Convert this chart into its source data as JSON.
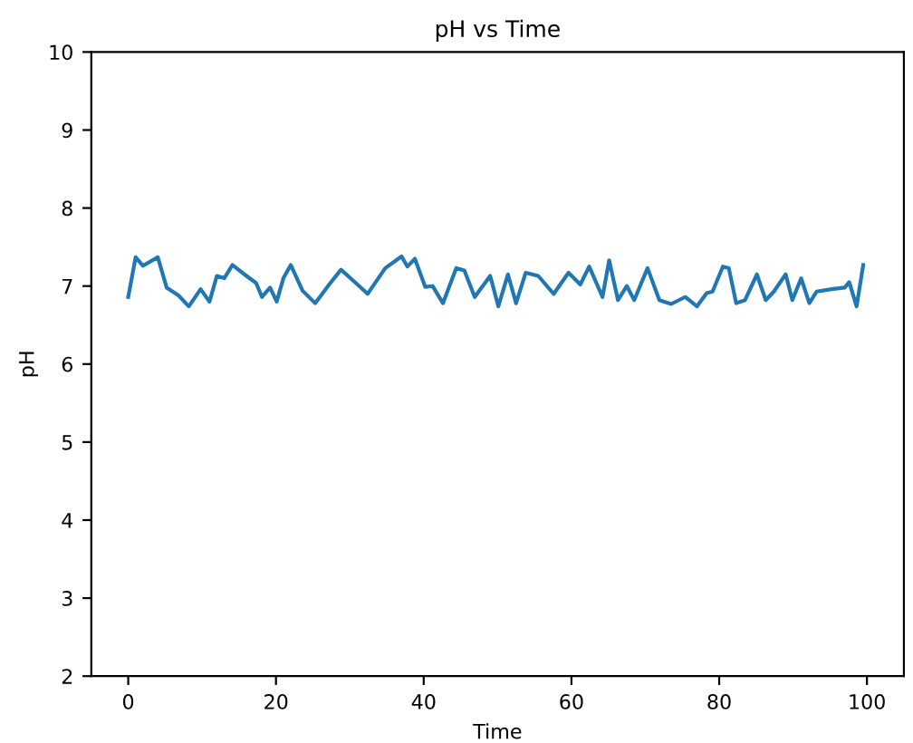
{
  "chart_data": {
    "type": "line",
    "title": "pH vs Time",
    "xlabel": "Time",
    "ylabel": "pH",
    "series": [
      {
        "color": "#1f77b4",
        "x": [
          0,
          1,
          2,
          4,
          5.2,
          6.8,
          8.2,
          9.8,
          11,
          12,
          13,
          14.1,
          16,
          17.3,
          18.1,
          19.2,
          20.1,
          21,
          22,
          23.6,
          25.3,
          27.2,
          28.8,
          30.8,
          32.4,
          34.8,
          37,
          37.8,
          38.8,
          40.2,
          41.2,
          42.6,
          44.4,
          45.5,
          46.9,
          49,
          50.1,
          51.4,
          52.5,
          53.8,
          55.5,
          57.6,
          59.6,
          61.2,
          62.4,
          64.2,
          65.1,
          66.3,
          67.5,
          68.5,
          70.3,
          71.9,
          73.5,
          75.4,
          77,
          78.3,
          79.1,
          80.5,
          81.3,
          82.3,
          83.5,
          85.1,
          86.3,
          87.4,
          89,
          89.9,
          91.1,
          92.2,
          93.2,
          95.2,
          97,
          97.6,
          98.6,
          99.5
        ],
        "values": [
          6.86,
          7.37,
          7.26,
          7.37,
          6.98,
          6.88,
          6.74,
          6.96,
          6.8,
          7.13,
          7.1,
          7.27,
          7.13,
          7.04,
          6.86,
          6.98,
          6.8,
          7.1,
          7.27,
          6.94,
          6.78,
          7.02,
          7.21,
          7.04,
          6.9,
          7.23,
          7.38,
          7.25,
          7.35,
          6.99,
          7.0,
          6.78,
          7.23,
          7.2,
          6.86,
          7.13,
          6.74,
          7.15,
          6.78,
          7.17,
          7.13,
          6.9,
          7.17,
          7.02,
          7.25,
          6.86,
          7.33,
          6.82,
          7.0,
          6.82,
          7.23,
          6.82,
          6.77,
          6.86,
          6.74,
          6.91,
          6.93,
          7.25,
          7.23,
          6.78,
          6.82,
          7.15,
          6.82,
          6.93,
          7.15,
          6.82,
          7.1,
          6.78,
          6.93,
          6.96,
          6.98,
          7.05,
          6.74,
          7.27
        ]
      }
    ],
    "xlim": [
      -5,
      105
    ],
    "xticks": [
      0,
      20,
      40,
      60,
      80,
      100
    ],
    "ylim": [
      2,
      10
    ],
    "yticks": [
      2,
      3,
      4,
      5,
      6,
      7,
      8,
      9,
      10
    ],
    "grid": false,
    "legend": false,
    "marker": "none",
    "line_style": "solid"
  }
}
